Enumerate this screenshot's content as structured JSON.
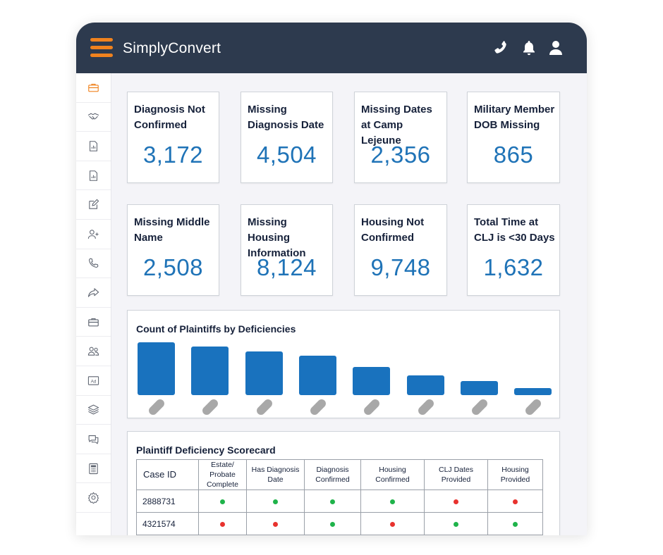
{
  "header": {
    "brand": "SimplyConvert",
    "icons": [
      "phone-icon",
      "bell-icon",
      "user-icon"
    ]
  },
  "colors": {
    "header_bg": "#2d3a4e",
    "accent": "#f0821e",
    "value_blue": "#1f73b7",
    "bar_blue": "#1972be",
    "status_green": "#1fb34a",
    "status_red": "#e8322e"
  },
  "sidebar": {
    "items": [
      {
        "icon": "briefcase-icon",
        "active": true
      },
      {
        "icon": "handshake-icon"
      },
      {
        "icon": "report-icon"
      },
      {
        "icon": "report-icon"
      },
      {
        "icon": "edit-icon"
      },
      {
        "icon": "add-user-icon"
      },
      {
        "icon": "phone-icon"
      },
      {
        "icon": "share-icon"
      },
      {
        "icon": "briefcase-icon"
      },
      {
        "icon": "users-icon"
      },
      {
        "icon": "ad-icon"
      },
      {
        "icon": "layers-icon"
      },
      {
        "icon": "chat-icon"
      },
      {
        "icon": "calculator-icon"
      },
      {
        "icon": "settings-icon"
      }
    ]
  },
  "kpis": [
    {
      "title": "Diagnosis Not Confirmed",
      "value": "3,172"
    },
    {
      "title": "Missing Diagnosis Date",
      "value": "4,504"
    },
    {
      "title": "Missing Dates at Camp Lejeune",
      "value": "2,356"
    },
    {
      "title": "Military Member DOB Missing",
      "value": "865"
    },
    {
      "title": "Missing Middle Name",
      "value": "2,508"
    },
    {
      "title": "Missing Housing Information",
      "value": "8,124"
    },
    {
      "title": "Housing Not Confirmed",
      "value": "9,748"
    },
    {
      "title": "Total Time at CLJ is <30 Days",
      "value": "1,632"
    }
  ],
  "chart_data": {
    "type": "bar",
    "title": "Count of Plaintiffs by Deficiencies",
    "values": [
      75,
      69,
      62,
      56,
      40,
      28,
      20,
      10
    ],
    "ylim": [
      0,
      75
    ],
    "grid": false,
    "category_labels_shown": false
  },
  "scorecard": {
    "title": "Plaintiff Deficiency Scorecard",
    "columns": [
      "Case ID",
      "Estate/ Probate Complete",
      "Has Diagnosis Date",
      "Diagnosis Confirmed",
      "Housing Confirmed",
      "CLJ Dates Provided",
      "Housing Provided"
    ],
    "rows": [
      {
        "case_id": "2888731",
        "status": [
          "green",
          "green",
          "green",
          "green",
          "red",
          "red"
        ]
      },
      {
        "case_id": "4321574",
        "status": [
          "red",
          "red",
          "green",
          "red",
          "green",
          "green"
        ]
      }
    ]
  }
}
